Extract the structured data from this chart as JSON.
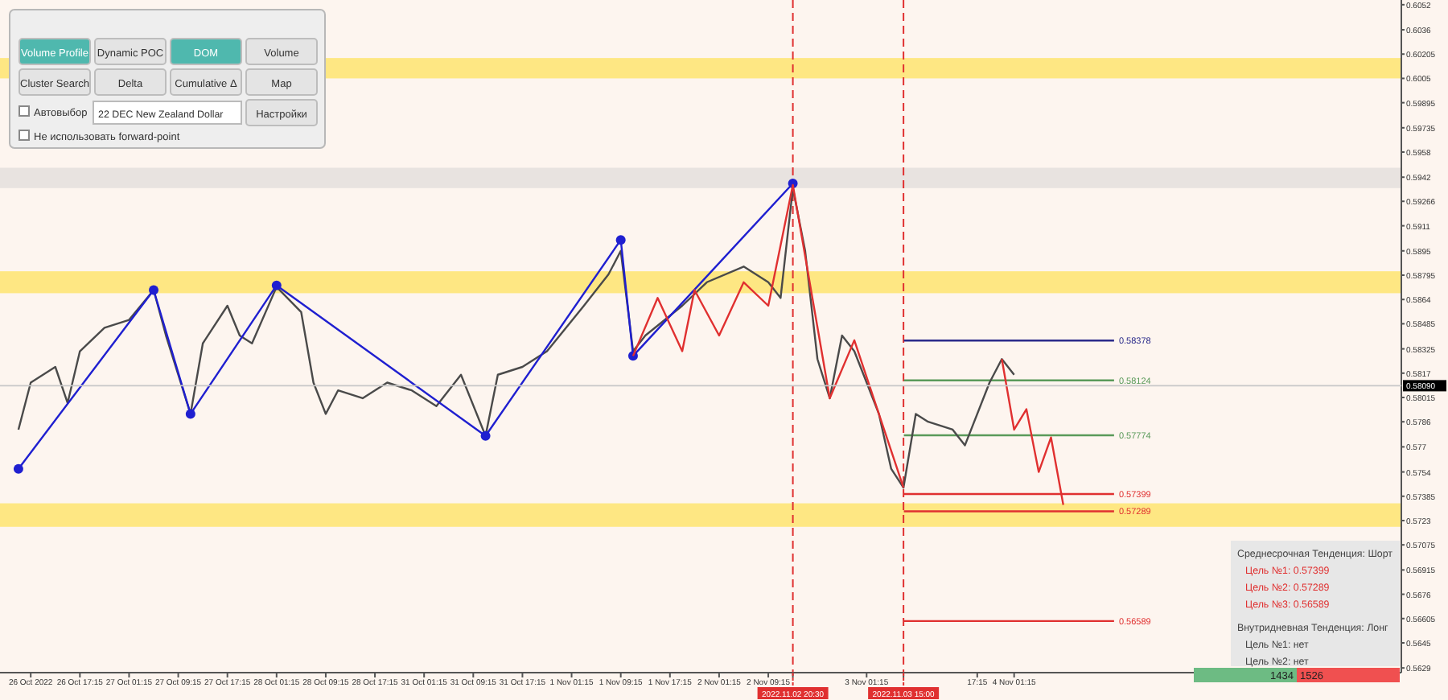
{
  "chart_data": {
    "type": "line",
    "categories": [
      null,
      null,
      "26 Oct 2022",
      null,
      null,
      null,
      "26 Oct 17:15",
      null,
      null,
      null,
      "27 Oct 01:15",
      null,
      null,
      null,
      "27 Oct 09:15",
      null,
      null,
      null,
      "27 Oct 17:15",
      null,
      null,
      null,
      "28 Oct 01:15",
      null,
      null,
      null,
      "28 Oct 09:15",
      null,
      null,
      null,
      "28 Oct 17:15",
      null,
      null,
      null,
      "31 Oct 01:15",
      null,
      null,
      null,
      "31 Oct 09:15",
      null,
      null,
      null,
      "31 Oct 17:15",
      null,
      null,
      null,
      "1 Nov 01:15",
      null,
      null,
      null,
      "1 Nov 09:15",
      null,
      null,
      null,
      "1 Nov 17:15",
      null,
      null,
      null,
      "2 Nov 01:15",
      null,
      null,
      null,
      "2 Nov 09:15",
      null,
      "2022.11.02 20:30",
      null,
      null,
      null,
      null,
      null,
      "3 Nov 01:15",
      null,
      null,
      "2022.11.03 15:00",
      null,
      null,
      null,
      null,
      null,
      "17:15",
      null,
      null,
      "4 Nov 01:15",
      null,
      null,
      null,
      null,
      null,
      null,
      null,
      null,
      null,
      null,
      null,
      null,
      null,
      null,
      null,
      null,
      null,
      null,
      null,
      null,
      null,
      null,
      null,
      null,
      null,
      null,
      null,
      null,
      null,
      null,
      null
    ],
    "ylim": [
      0.5626,
      0.6055
    ],
    "yticks": [
      0.6052,
      0.6036,
      {
        "value": 0.60205,
        "label": "0.60205"
      },
      0.6005,
      {
        "value": 0.59895,
        "label": "0.59895"
      },
      {
        "value": 0.59735,
        "label": "0.59735"
      },
      0.5958,
      0.5942,
      {
        "value": 0.59266,
        "label": "0.59266"
      },
      0.5911,
      0.5895,
      {
        "value": 0.58795,
        "label": "0.58795"
      },
      0.5864,
      {
        "value": 0.58485,
        "label": "0.58485"
      },
      {
        "value": 0.58325,
        "label": "0.58325"
      },
      0.5817,
      {
        "value": 0.58015,
        "label": "0.58015"
      },
      0.5786,
      0.577,
      0.5754,
      {
        "value": 0.57385,
        "label": "0.57385"
      },
      0.5723,
      {
        "value": 0.57075,
        "label": "0.57075"
      },
      {
        "value": 0.56915,
        "label": "0.56915"
      },
      0.5676,
      {
        "value": 0.56605,
        "label": "0.56605"
      },
      0.5645,
      0.5629
    ],
    "series": [
      {
        "color": "#4a4a4a",
        "values": [
          null,
          0.5781,
          0.5811,
          null,
          0.5821,
          0.5798,
          0.5831,
          null,
          0.5846,
          null,
          0.5851,
          null,
          0.587,
          0.5841,
          0.5816,
          0.5791,
          0.5836,
          null,
          0.586,
          0.5841,
          0.5836,
          null,
          0.5872,
          null,
          0.5856,
          0.5811,
          0.5791,
          0.5806,
          null,
          0.5801,
          null,
          0.5811,
          null,
          0.5806,
          null,
          0.5796,
          null,
          0.5816,
          null,
          0.5777,
          0.5816,
          null,
          0.5821,
          null,
          0.5831,
          null,
          null,
          0.586,
          null,
          0.588,
          0.5895,
          0.5831,
          0.5841,
          null,
          null,
          0.586,
          null,
          0.5875,
          null,
          null,
          0.5885,
          null,
          0.5875,
          0.5865,
          0.5935,
          0.5895,
          0.5826,
          0.5801,
          0.5841,
          0.5831,
          null,
          0.5791,
          0.5756,
          0.5744,
          0.5791,
          0.5786,
          null,
          0.5781,
          0.5771,
          null,
          0.5811,
          0.5826,
          0.5816,
          null,
          null,
          null,
          null,
          null,
          null,
          null,
          null,
          null,
          null,
          null,
          null,
          null,
          null,
          null,
          null,
          null,
          null,
          null,
          null,
          null,
          null,
          null,
          null,
          null,
          null,
          null,
          null,
          null,
          null,
          null
        ]
      },
      {
        "color": "#1f1fd0",
        "marker": "circle",
        "values": [
          null,
          0.5756,
          null,
          null,
          null,
          null,
          null,
          null,
          null,
          null,
          null,
          null,
          0.587,
          null,
          null,
          0.5791,
          null,
          null,
          null,
          null,
          null,
          null,
          0.5873,
          null,
          null,
          null,
          null,
          null,
          null,
          null,
          null,
          null,
          null,
          null,
          null,
          null,
          null,
          null,
          null,
          0.5777,
          null,
          null,
          null,
          null,
          null,
          null,
          null,
          null,
          null,
          null,
          0.5902,
          0.5828,
          null,
          null,
          null,
          null,
          null,
          null,
          null,
          null,
          null,
          null,
          null,
          null,
          0.5938,
          null,
          null,
          null,
          null,
          null,
          null,
          null,
          null,
          null,
          null,
          null,
          null,
          null,
          null,
          null,
          null,
          null,
          null,
          null,
          null,
          null,
          null,
          null,
          null,
          null,
          null,
          null,
          null,
          null,
          null,
          null,
          null,
          null,
          null,
          null,
          null,
          null,
          null,
          null,
          null,
          null,
          null,
          null,
          null,
          null,
          null,
          null,
          null,
          null
        ]
      },
      {
        "color": "#e03030",
        "values": [
          null,
          null,
          null,
          null,
          null,
          null,
          null,
          null,
          null,
          null,
          null,
          null,
          null,
          null,
          null,
          null,
          null,
          null,
          null,
          null,
          null,
          null,
          null,
          null,
          null,
          null,
          null,
          null,
          null,
          null,
          null,
          null,
          null,
          null,
          null,
          null,
          null,
          null,
          null,
          null,
          null,
          null,
          null,
          null,
          null,
          null,
          null,
          null,
          null,
          null,
          null,
          0.5828,
          null,
          0.5865,
          null,
          0.5831,
          0.587,
          null,
          0.5841,
          null,
          0.5875,
          null,
          0.586,
          null,
          0.5937,
          null,
          null,
          0.5801,
          null,
          0.5838,
          null,
          null,
          null,
          0.5744,
          null,
          null,
          null,
          null,
          null,
          null,
          null,
          null,
          null,
          null,
          null,
          null,
          null,
          null,
          null,
          null,
          null,
          null,
          null,
          null,
          null,
          null,
          null,
          null,
          null,
          null,
          null,
          null,
          null,
          null,
          null,
          null,
          null,
          null,
          null,
          null,
          null,
          null,
          null,
          null
        ]
      },
      {
        "color": "#e03030",
        "values": [
          null,
          null,
          null,
          null,
          null,
          null,
          null,
          null,
          null,
          null,
          null,
          null,
          null,
          null,
          null,
          null,
          null,
          null,
          null,
          null,
          null,
          null,
          null,
          null,
          null,
          null,
          null,
          null,
          null,
          null,
          null,
          null,
          null,
          null,
          null,
          null,
          null,
          null,
          null,
          null,
          null,
          null,
          null,
          null,
          null,
          null,
          null,
          null,
          null,
          null,
          null,
          null,
          null,
          null,
          null,
          null,
          null,
          null,
          null,
          null,
          null,
          null,
          null,
          null,
          null,
          null,
          null,
          null,
          null,
          null,
          null,
          null,
          null,
          null,
          null,
          null,
          null,
          null,
          null,
          null,
          null,
          0.5826,
          0.5781,
          0.5794,
          0.5754,
          0.5776,
          0.5733,
          null,
          null,
          null,
          null,
          null,
          null,
          null,
          null,
          null,
          null,
          null,
          null,
          null,
          null,
          null,
          null,
          null,
          null,
          null,
          null,
          null,
          null,
          null,
          null,
          null,
          null,
          null
        ]
      }
    ],
    "bands": [
      {
        "axis": "y",
        "from": 0.6005,
        "to": 0.6018,
        "color": "#ffd700"
      },
      {
        "axis": "y",
        "from": 0.5935,
        "to": 0.5948,
        "color": "#cfcfcf"
      },
      {
        "axis": "y",
        "from": 0.5868,
        "to": 0.5882,
        "color": "#ffd700"
      },
      {
        "axis": "y",
        "from": 0.5719,
        "to": 0.5734,
        "color": "#ffd700"
      }
    ],
    "ref_lines": [
      {
        "axis": "x",
        "value": "2022.11.02 20:30",
        "color": "#e03030",
        "line_style": "dashed"
      },
      {
        "axis": "x",
        "value": "2022.11.03 15:00",
        "color": "#e03030",
        "line_style": "dashed"
      },
      {
        "axis": "y",
        "value": 0.58378,
        "label": "0.58378",
        "color": "#2a2a8a"
      },
      {
        "axis": "y",
        "value": 0.58124,
        "label": "0.58124",
        "color": "#5a9a5a"
      },
      {
        "axis": "y",
        "value": 0.5809,
        "label": "0.58090",
        "color": "#c8c8c8"
      },
      {
        "axis": "y",
        "value": 0.57774,
        "label": "0.57774",
        "color": "#5a9a5a"
      },
      {
        "axis": "y",
        "value": 0.57399,
        "label": "0.57399",
        "color": "#e03030"
      },
      {
        "axis": "y",
        "value": 0.57289,
        "label": "0.57289",
        "color": "#e03030"
      },
      {
        "axis": "y",
        "value": 0.56589,
        "label": "0.56589",
        "color": "#e03030"
      }
    ],
    "annotations": [
      "Volume Profile",
      "Dynamic POC",
      "DOM",
      "Volume",
      "Cluster Search",
      "Delta",
      "Cumulative Δ",
      "Map",
      "Автовыбор",
      "22 DEC New Zealand Dollar",
      "Настройки",
      "Не использовать forward-point",
      "Среднесрочная Тенденция: Шорт",
      "Цель №1: 0.57399",
      "Цель №2: 0.57289",
      "Цель №3: 0.56589",
      "Внутридневная Тенденция: Лонг",
      "Цель №1: нет",
      "Цель №2: нет",
      "1434",
      "1526"
    ]
  }
}
